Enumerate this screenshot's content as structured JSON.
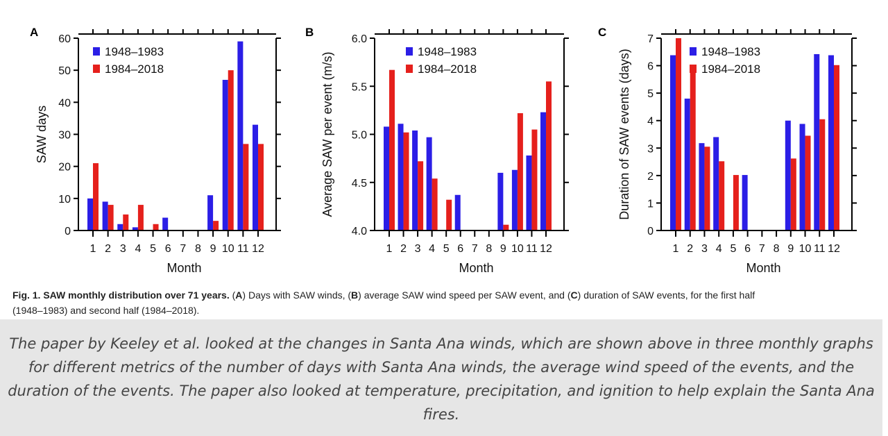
{
  "colors": {
    "series1": "#2b1ee6",
    "series2": "#e5201c",
    "axis": "#000000"
  },
  "chart_data": [
    {
      "panel": "A",
      "type": "bar",
      "categories": [
        "1",
        "2",
        "3",
        "4",
        "5",
        "6",
        "7",
        "8",
        "9",
        "10",
        "11",
        "12"
      ],
      "series": [
        {
          "name": "1948–1983",
          "values": [
            10,
            9,
            2,
            1,
            0,
            4,
            0,
            0,
            11,
            47,
            59,
            33
          ]
        },
        {
          "name": "1984–2018",
          "values": [
            21,
            8,
            5,
            8,
            2,
            0,
            0,
            0,
            3,
            50,
            27,
            27
          ]
        }
      ],
      "xlabel": "Month",
      "ylabel": "SAW days",
      "ylim": [
        0,
        60
      ],
      "yticks": [
        0,
        10,
        20,
        30,
        40,
        50,
        60
      ],
      "ytick_labels": [
        "0",
        "10",
        "20",
        "30",
        "40",
        "50",
        "60"
      ],
      "legend": "top-left"
    },
    {
      "panel": "B",
      "type": "bar",
      "categories": [
        "1",
        "2",
        "3",
        "4",
        "5",
        "6",
        "7",
        "8",
        "9",
        "10",
        "11",
        "12"
      ],
      "series": [
        {
          "name": "1948–1983",
          "values": [
            5.08,
            5.11,
            5.04,
            4.97,
            null,
            4.37,
            null,
            null,
            4.6,
            4.63,
            4.78,
            5.23
          ]
        },
        {
          "name": "1984–2018",
          "values": [
            5.67,
            5.02,
            4.72,
            4.54,
            4.32,
            null,
            null,
            null,
            4.06,
            5.22,
            5.05,
            5.55
          ]
        }
      ],
      "xlabel": "Month",
      "ylabel": "Average SAW per event  (m/s)",
      "ylim": [
        4.0,
        6.0
      ],
      "yticks": [
        4.0,
        4.5,
        5.0,
        5.5,
        6.0
      ],
      "ytick_labels": [
        "4.0",
        "4.5",
        "5.0",
        "5.5",
        "6.0"
      ],
      "legend": "top-left"
    },
    {
      "panel": "C",
      "type": "bar",
      "categories": [
        "1",
        "2",
        "3",
        "4",
        "5",
        "6",
        "7",
        "8",
        "9",
        "10",
        "11",
        "12"
      ],
      "series": [
        {
          "name": "1948–1983",
          "values": [
            6.38,
            4.8,
            3.18,
            3.4,
            0,
            2.02,
            0,
            0,
            4.0,
            3.88,
            6.42,
            6.38
          ]
        },
        {
          "name": "1984–2018",
          "values": [
            7.0,
            5.82,
            3.05,
            2.52,
            2.02,
            0,
            0,
            0,
            2.62,
            3.45,
            4.05,
            6.02
          ]
        }
      ],
      "xlabel": "Month",
      "ylabel": "Duration of SAW events  (days)",
      "ylim": [
        0,
        7
      ],
      "yticks": [
        0,
        1,
        2,
        3,
        4,
        5,
        6,
        7
      ],
      "ytick_labels": [
        "0",
        "1",
        "2",
        "3",
        "4",
        "5",
        "6",
        "7"
      ],
      "legend": "top-left"
    }
  ],
  "caption": {
    "title": "Fig. 1. SAW monthly distribution over 71 years.",
    "p1": " (",
    "a": "A",
    "p2": ") Days with SAW winds, (",
    "b": "B",
    "p3": ") average SAW wind speed per SAW event, and (",
    "c": "C",
    "p4": ") duration of SAW events, for the first half",
    "line2": "(1948–1983) and second half (1984–2018)."
  },
  "description": "The paper by Keeley et al. looked at the changes in Santa Ana winds, which are shown above in three monthly graphs for different metrics of the number of days with Santa Ana winds, the average wind speed of the events, and the duration of the events. The paper also looked at temperature, precipitation, and ignition to help explain the Santa Ana fires."
}
